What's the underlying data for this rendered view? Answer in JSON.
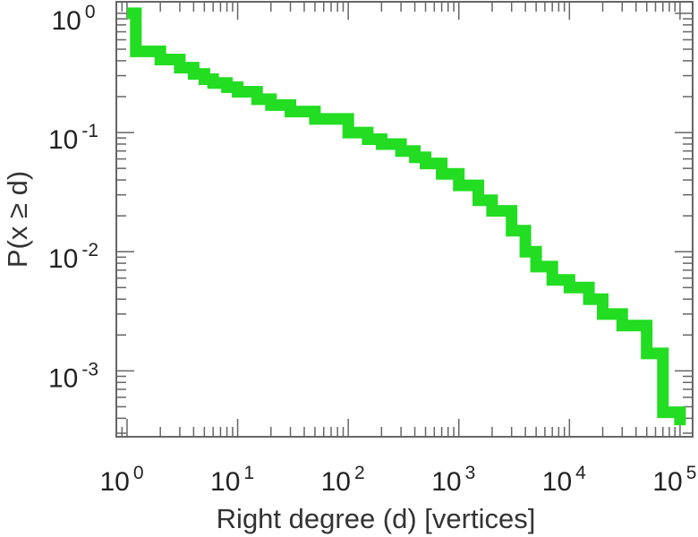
{
  "chart_data": {
    "type": "line",
    "step": true,
    "xscale": "log",
    "yscale": "log",
    "xlabel": "Right degree (d) [vertices]",
    "ylabel": "P(x ≥ d)",
    "xlim": [
      0.8,
      130000
    ],
    "ylim": [
      0.00028,
      1.25
    ],
    "grid": false,
    "colors": {
      "line": "#22dd22",
      "axis": "#666666",
      "text": "#222222"
    },
    "xticks": [
      {
        "base": "10",
        "exp": "0"
      },
      {
        "base": "10",
        "exp": "1"
      },
      {
        "base": "10",
        "exp": "2"
      },
      {
        "base": "10",
        "exp": "3"
      },
      {
        "base": "10",
        "exp": "4"
      },
      {
        "base": "10",
        "exp": "5"
      }
    ],
    "yticks": [
      {
        "base": "10",
        "exp": "0"
      },
      {
        "base": "10",
        "exp": "-1"
      },
      {
        "base": "10",
        "exp": "-2"
      },
      {
        "base": "10",
        "exp": "-3"
      }
    ],
    "series": [
      {
        "x": [
          1,
          1.2,
          2,
          3,
          4,
          5,
          6,
          8,
          10,
          15,
          20,
          30,
          50,
          100,
          150,
          200,
          300,
          400,
          500,
          700,
          1000,
          1500,
          2000,
          3000,
          4000,
          5000,
          7000,
          10000,
          15000,
          20000,
          30000,
          50000,
          70000,
          100000
        ],
        "y": [
          1.0,
          0.48,
          0.41,
          0.35,
          0.31,
          0.28,
          0.26,
          0.24,
          0.22,
          0.19,
          0.17,
          0.15,
          0.13,
          0.1,
          0.088,
          0.08,
          0.07,
          0.062,
          0.055,
          0.045,
          0.036,
          0.027,
          0.022,
          0.015,
          0.01,
          0.0075,
          0.0058,
          0.005,
          0.004,
          0.003,
          0.0024,
          0.0014,
          0.00045,
          0.00035
        ]
      }
    ]
  }
}
